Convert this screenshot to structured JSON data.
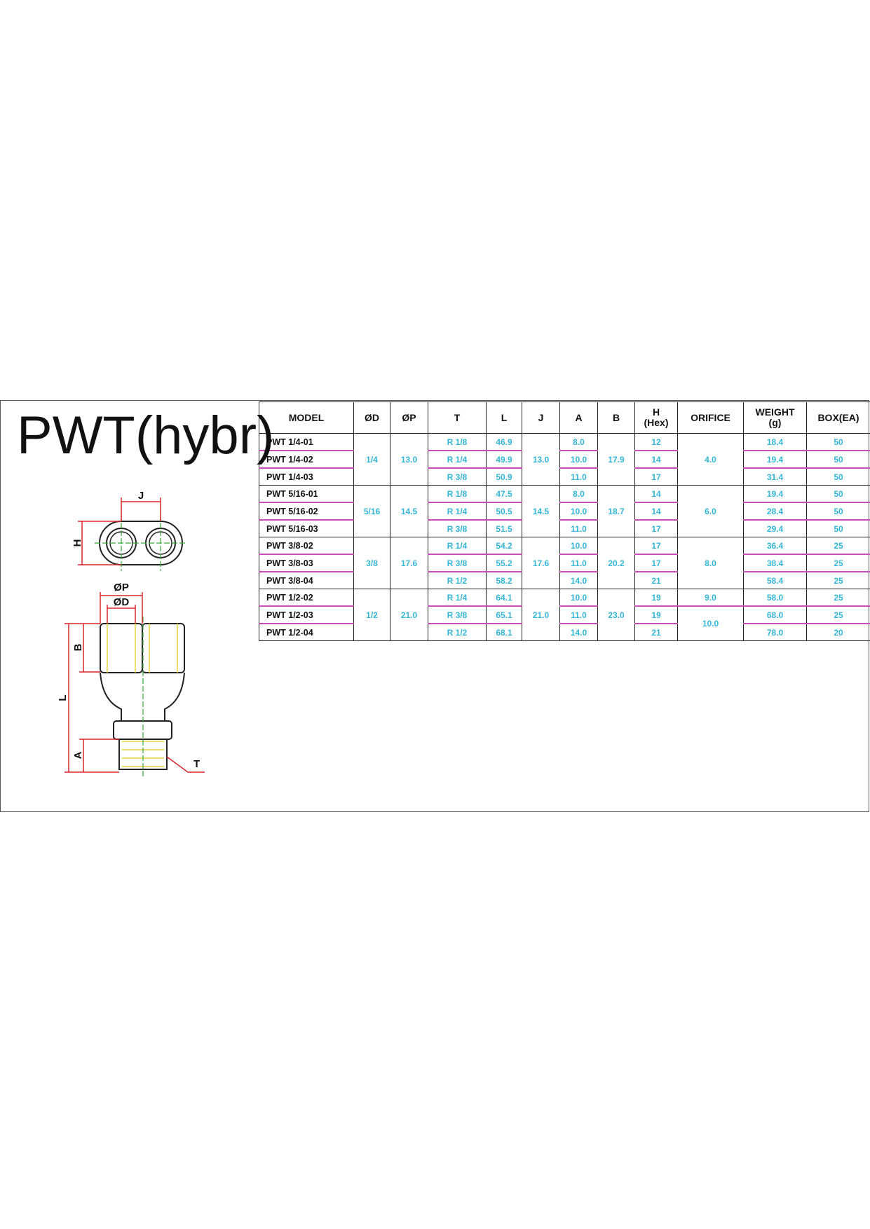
{
  "title": "PWT(hybr)",
  "diagram": {
    "labels": {
      "j": "J",
      "h": "H",
      "p": "ØP",
      "d": "ØD",
      "b": "B",
      "l": "L",
      "a": "A",
      "t": "T"
    }
  },
  "table": {
    "headers": [
      "MODEL",
      "ØD",
      "ØP",
      "T",
      "L",
      "J",
      "A",
      "B",
      "H\n(Hex)",
      "ORIFICE",
      "WEIGHT\n(g)",
      "BOX(EA)"
    ],
    "groups": [
      {
        "d": "1/4",
        "p": "13.0",
        "j": "13.0",
        "b": "17.9",
        "rows": [
          {
            "model": "PWT 1/4-01",
            "t": "R 1/8",
            "l": "46.9",
            "a": "8.0",
            "h": "12",
            "orifice": "4.0",
            "weight": "18.4",
            "box": "50"
          },
          {
            "model": "PWT 1/4-02",
            "t": "R 1/4",
            "l": "49.9",
            "a": "10.0",
            "h": "14",
            "orifice": null,
            "weight": "19.4",
            "box": "50"
          },
          {
            "model": "PWT 1/4-03",
            "t": "R 3/8",
            "l": "50.9",
            "a": "11.0",
            "h": "17",
            "orifice": null,
            "weight": "31.4",
            "box": "50"
          }
        ]
      },
      {
        "d": "5/16",
        "p": "14.5",
        "j": "14.5",
        "b": "18.7",
        "rows": [
          {
            "model": "PWT 5/16-01",
            "t": "R 1/8",
            "l": "47.5",
            "a": "8.0",
            "h": "14",
            "orifice": "6.0",
            "weight": "19.4",
            "box": "50"
          },
          {
            "model": "PWT 5/16-02",
            "t": "R 1/4",
            "l": "50.5",
            "a": "10.0",
            "h": "14",
            "orifice": null,
            "weight": "28.4",
            "box": "50"
          },
          {
            "model": "PWT 5/16-03",
            "t": "R 3/8",
            "l": "51.5",
            "a": "11.0",
            "h": "17",
            "orifice": null,
            "weight": "29.4",
            "box": "50"
          }
        ]
      },
      {
        "d": "3/8",
        "p": "17.6",
        "j": "17.6",
        "b": "20.2",
        "rows": [
          {
            "model": "PWT 3/8-02",
            "t": "R 1/4",
            "l": "54.2",
            "a": "10.0",
            "h": "17",
            "orifice": "8.0",
            "weight": "36.4",
            "box": "25"
          },
          {
            "model": "PWT 3/8-03",
            "t": "R 3/8",
            "l": "55.2",
            "a": "11.0",
            "h": "17",
            "orifice": null,
            "weight": "38.4",
            "box": "25"
          },
          {
            "model": "PWT 3/8-04",
            "t": "R 1/2",
            "l": "58.2",
            "a": "14.0",
            "h": "21",
            "orifice": null,
            "weight": "58.4",
            "box": "25"
          }
        ]
      },
      {
        "d": "1/2",
        "p": "21.0",
        "j": "21.0",
        "b": "23.0",
        "rows": [
          {
            "model": "PWT 1/2-02",
            "t": "R 1/4",
            "l": "64.1",
            "a": "10.0",
            "h": "19",
            "orifice": "9.0",
            "weight": "58.0",
            "box": "25"
          },
          {
            "model": "PWT 1/2-03",
            "t": "R 3/8",
            "l": "65.1",
            "a": "11.0",
            "h": "19",
            "orifice": "10.0",
            "weight": "68.0",
            "box": "25"
          },
          {
            "model": "PWT 1/2-04",
            "t": "R 1/2",
            "l": "68.1",
            "a": "14.0",
            "h": "21",
            "orifice": null,
            "weight": "78.0",
            "box": "20"
          }
        ]
      }
    ]
  }
}
